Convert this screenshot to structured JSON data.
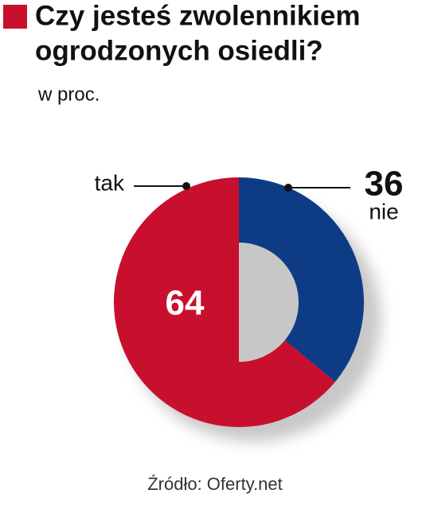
{
  "chart_data": {
    "type": "donut",
    "title": [
      "Czy jesteś zwolennikiem",
      "ogrodzonych osiedli?"
    ],
    "subtitle": "w proc.",
    "source": "Źródło: Oferty.net",
    "categories": [
      "tak",
      "nie"
    ],
    "values": [
      64,
      36
    ],
    "colors": [
      "#c8102e",
      "#0d3c85"
    ]
  }
}
